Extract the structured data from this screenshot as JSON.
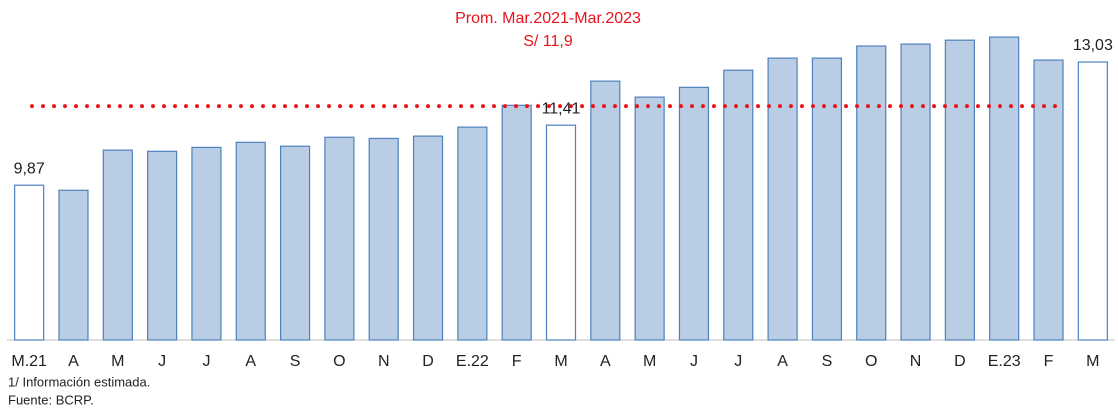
{
  "chart_data": {
    "type": "bar",
    "categories": [
      "M.21",
      "A",
      "M",
      "J",
      "J",
      "A",
      "S",
      "O",
      "N",
      "D",
      "E.22",
      "F",
      "M",
      "A",
      "M",
      "J",
      "J",
      "A",
      "S",
      "O",
      "N",
      "D",
      "E.23",
      "F",
      "M"
    ],
    "values": [
      9.87,
      9.74,
      10.77,
      10.74,
      10.84,
      10.97,
      10.87,
      11.1,
      11.07,
      11.13,
      11.36,
      11.92,
      11.41,
      12.54,
      12.13,
      12.38,
      12.82,
      13.13,
      13.13,
      13.44,
      13.49,
      13.59,
      13.67,
      13.08,
      13.03
    ],
    "value_labels": [
      "9,87",
      null,
      null,
      null,
      null,
      null,
      null,
      null,
      null,
      null,
      null,
      null,
      "11,41",
      null,
      null,
      null,
      null,
      null,
      null,
      null,
      null,
      null,
      null,
      null,
      "13,03"
    ],
    "colors": [
      "#ffffff",
      "#b9cde5",
      "#b9cde5",
      "#b9cde5",
      "#b9cde5",
      "#b9cde5",
      "#b9cde5",
      "#b9cde5",
      "#b9cde5",
      "#b9cde5",
      "#b9cde5",
      "#b9cde5",
      "#ffffff",
      "#b9cde5",
      "#b9cde5",
      "#b9cde5",
      "#b9cde5",
      "#b9cde5",
      "#b9cde5",
      "#b9cde5",
      "#b9cde5",
      "#b9cde5",
      "#b9cde5",
      "#b9cde5",
      "#ffffff"
    ],
    "edge_color": "#4f81bd",
    "ylim": [
      5.9,
      13.8
    ],
    "reference_line": {
      "value": 11.9,
      "color": "#e8141b",
      "label": [
        "Prom. Mar.2021-Mar.2023",
        "S/ 11,9"
      ]
    },
    "notes": [
      "1/ Información estimada.",
      "Fuente: BCRP."
    ]
  }
}
